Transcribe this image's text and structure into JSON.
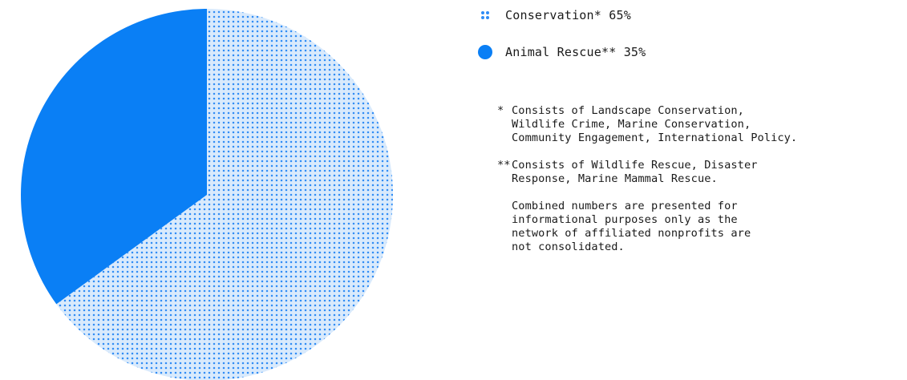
{
  "chart_data": {
    "type": "pie",
    "title": "",
    "series": [
      {
        "name": "Conservation*",
        "value": 65,
        "label": "Conservation* 65%",
        "color": "#2f8cf5",
        "fill": "dotted",
        "background": "#dbeafc"
      },
      {
        "name": "Animal Rescue**",
        "value": 35,
        "label": "Animal Rescue** 35%",
        "color": "#0a7ff5",
        "fill": "solid"
      }
    ],
    "start_angle_deg": 0,
    "direction": "counterclockwise-from-top",
    "legend_position": "right"
  },
  "footnotes": [
    {
      "marker": "*",
      "text": "Consists of Landscape Conservation,\nWildlife Crime, Marine Conservation,\nCommunity Engagement, International Policy."
    },
    {
      "marker": "**",
      "text": "Consists of Wildlife Rescue, Disaster\nResponse, Marine Mammal Rescue."
    }
  ],
  "disclaimer": "Combined numbers are presented for\ninformational purposes only as the\nnetwork of affiliated nonprofits are\nnot consolidated."
}
